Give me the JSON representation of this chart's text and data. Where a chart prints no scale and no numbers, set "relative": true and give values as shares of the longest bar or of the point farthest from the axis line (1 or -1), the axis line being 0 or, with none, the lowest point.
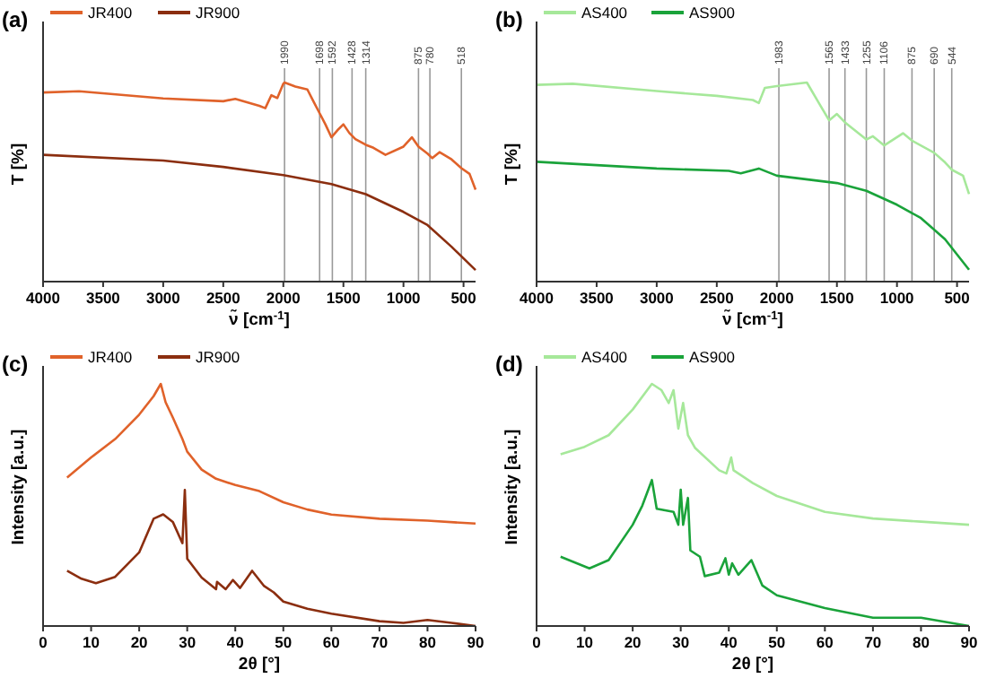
{
  "chart_data": [
    {
      "type": "line",
      "title": "(a)",
      "xlabel": "ν̃ [cm$^{-1}$]",
      "ylabel": "T [%]",
      "relative": true,
      "legend": "top left",
      "xlim": [
        4000,
        400
      ],
      "xticks": [
        4000,
        3500,
        3000,
        2500,
        2000,
        1500,
        1000,
        500
      ],
      "series": [
        {
          "name": "JR400",
          "color": "#e0622a",
          "x": [
            4000,
            3700,
            3000,
            2500,
            2400,
            2200,
            2150,
            2100,
            2050,
            2000,
            1990,
            1900,
            1800,
            1750,
            1700,
            1650,
            1600,
            1550,
            1500,
            1450,
            1400,
            1314,
            1250,
            1150,
            1000,
            930,
            875,
            800,
            760,
            700,
            600,
            518,
            450,
            400
          ],
          "values": [
            0.95,
            0.956,
            0.92,
            0.906,
            0.918,
            0.883,
            0.871,
            0.936,
            0.922,
            0.994,
            1,
            0.98,
            0.965,
            0.906,
            0.848,
            0.79,
            0.725,
            0.76,
            0.79,
            0.746,
            0.716,
            0.687,
            0.672,
            0.637,
            0.678,
            0.725,
            0.678,
            0.643,
            0.62,
            0.65,
            0.614,
            0.57,
            0.541,
            0.462
          ]
        },
        {
          "name": "JR900",
          "color": "#8b2e0f",
          "x": [
            4000,
            3000,
            2500,
            2000,
            1600,
            1314,
            1000,
            800,
            600,
            400
          ],
          "values": [
            0.637,
            0.608,
            0.576,
            0.535,
            0.49,
            0.439,
            0.35,
            0.284,
            0.175,
            0.058
          ]
        }
      ],
      "ref_lines": [
        {
          "axis": "x",
          "value": 1990,
          "label": "1990",
          "color": "#999999"
        },
        {
          "axis": "x",
          "value": 1698,
          "label": "1698",
          "color": "#999999"
        },
        {
          "axis": "x",
          "value": 1592,
          "label": "1592",
          "color": "#999999"
        },
        {
          "axis": "x",
          "value": 1428,
          "label": "1428",
          "color": "#999999"
        },
        {
          "axis": "x",
          "value": 1314,
          "label": "1314",
          "color": "#999999"
        },
        {
          "axis": "x",
          "value": 875,
          "label": "875",
          "color": "#999999"
        },
        {
          "axis": "x",
          "value": 780,
          "label": "780",
          "color": "#999999"
        },
        {
          "axis": "x",
          "value": 518,
          "label": "518",
          "color": "#999999"
        }
      ]
    },
    {
      "type": "line",
      "title": "(b)",
      "xlabel": "ν̃ [cm$^{-1}$]",
      "ylabel": "T [%]",
      "relative": true,
      "legend": "top left",
      "xlim": [
        4000,
        400
      ],
      "xticks": [
        4000,
        3500,
        3000,
        2500,
        2000,
        1500,
        1000,
        500
      ],
      "series": [
        {
          "name": "AS400",
          "color": "#a6e89a",
          "x": [
            4000,
            3700,
            3000,
            2500,
            2200,
            2150,
            2100,
            2000,
            1750,
            1650,
            1565,
            1500,
            1433,
            1255,
            1200,
            1106,
            950,
            875,
            690,
            600,
            544,
            450,
            400
          ],
          "values": [
            0.988,
            0.994,
            0.957,
            0.933,
            0.912,
            0.897,
            0.973,
            0.982,
            1,
            0.897,
            0.81,
            0.842,
            0.8,
            0.714,
            0.73,
            0.684,
            0.745,
            0.708,
            0.647,
            0.599,
            0.562,
            0.532,
            0.44
          ]
        },
        {
          "name": "AS900",
          "color": "#1aa33a",
          "x": [
            4000,
            3000,
            2400,
            2300,
            2150,
            2000,
            1500,
            1255,
            1000,
            800,
            600,
            400
          ],
          "values": [
            0.602,
            0.568,
            0.556,
            0.544,
            0.568,
            0.532,
            0.495,
            0.456,
            0.386,
            0.319,
            0.213,
            0.06
          ]
        }
      ],
      "ref_lines": [
        {
          "axis": "x",
          "value": 1983,
          "label": "1983",
          "color": "#999999"
        },
        {
          "axis": "x",
          "value": 1565,
          "label": "1565",
          "color": "#999999"
        },
        {
          "axis": "x",
          "value": 1433,
          "label": "1433",
          "color": "#999999"
        },
        {
          "axis": "x",
          "value": 1255,
          "label": "1255",
          "color": "#999999"
        },
        {
          "axis": "x",
          "value": 1106,
          "label": "1106",
          "color": "#999999"
        },
        {
          "axis": "x",
          "value": 875,
          "label": "875",
          "color": "#999999"
        },
        {
          "axis": "x",
          "value": 690,
          "label": "690",
          "color": "#999999"
        },
        {
          "axis": "x",
          "value": 544,
          "label": "544",
          "color": "#999999"
        }
      ]
    },
    {
      "type": "line",
      "title": "(c)",
      "xlabel": "2θ [°]",
      "ylabel": "Intensity [a.u.]",
      "relative": true,
      "legend": "top left",
      "xlim": [
        0,
        90
      ],
      "xticks": [
        0,
        10,
        20,
        30,
        40,
        50,
        60,
        70,
        80,
        90
      ],
      "series": [
        {
          "name": "JR400",
          "color": "#e0622a",
          "x": [
            5,
            10,
            15,
            20,
            23,
            24.5,
            25.5,
            27,
            29,
            30,
            33,
            36,
            40,
            45,
            50,
            55,
            60,
            70,
            80,
            90
          ],
          "values": [
            0.613,
            0.696,
            0.772,
            0.873,
            0.949,
            1,
            0.924,
            0.861,
            0.772,
            0.72,
            0.646,
            0.608,
            0.582,
            0.557,
            0.511,
            0.481,
            0.46,
            0.443,
            0.435,
            0.423
          ]
        },
        {
          "name": "JR900",
          "color": "#8b2e0f",
          "x": [
            5,
            8,
            11,
            15,
            20,
            23,
            25,
            27,
            29,
            29.5,
            30,
            33,
            36,
            36.2,
            38,
            39.5,
            41,
            43.5,
            46,
            48,
            50,
            55,
            60,
            70,
            75,
            80,
            85,
            90
          ],
          "values": [
            0.228,
            0.195,
            0.177,
            0.203,
            0.304,
            0.443,
            0.461,
            0.43,
            0.342,
            0.562,
            0.278,
            0.2,
            0.152,
            0.182,
            0.152,
            0.19,
            0.157,
            0.228,
            0.165,
            0.139,
            0.101,
            0.071,
            0.051,
            0.02,
            0.013,
            0.025,
            0.013,
            0
          ]
        }
      ]
    },
    {
      "type": "line",
      "title": "(d)",
      "xlabel": "2θ [°]",
      "ylabel": "Intensity [a.u.]",
      "relative": true,
      "legend": "top left",
      "xlim": [
        0,
        90
      ],
      "xticks": [
        0,
        10,
        20,
        30,
        40,
        50,
        60,
        70,
        80,
        90
      ],
      "series": [
        {
          "name": "AS400",
          "color": "#a6e89a",
          "x": [
            5,
            10,
            15,
            20,
            24,
            26,
            27.5,
            28.5,
            29.5,
            30.5,
            31.5,
            33,
            38,
            39.5,
            40.5,
            41,
            45,
            50,
            60,
            70,
            80,
            90
          ],
          "values": [
            0.709,
            0.74,
            0.788,
            0.894,
            1,
            0.974,
            0.921,
            0.974,
            0.815,
            0.921,
            0.788,
            0.735,
            0.643,
            0.63,
            0.696,
            0.643,
            0.59,
            0.537,
            0.471,
            0.444,
            0.431,
            0.418
          ]
        },
        {
          "name": "AS900",
          "color": "#1aa33a",
          "x": [
            5,
            11,
            15,
            20,
            22,
            24,
            25,
            28.5,
            29.5,
            30,
            30.5,
            31.5,
            32,
            34,
            35,
            38,
            39.3,
            40,
            40.7,
            42,
            44.7,
            47,
            50,
            60,
            70,
            80,
            90
          ],
          "values": [
            0.286,
            0.238,
            0.272,
            0.418,
            0.497,
            0.603,
            0.484,
            0.471,
            0.418,
            0.563,
            0.418,
            0.529,
            0.312,
            0.286,
            0.206,
            0.22,
            0.28,
            0.212,
            0.259,
            0.212,
            0.272,
            0.167,
            0.127,
            0.074,
            0.034,
            0.034,
            0
          ]
        }
      ]
    }
  ]
}
